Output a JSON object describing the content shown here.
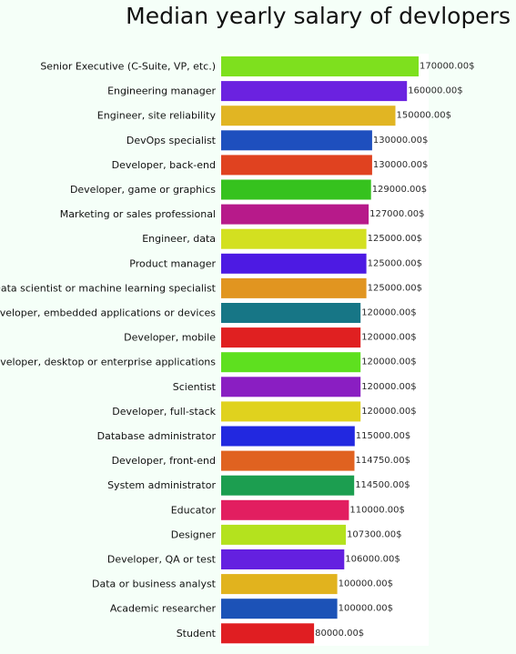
{
  "chart_data": {
    "type": "bar",
    "orientation": "horizontal",
    "title": "Median yearly salary of devlopers",
    "value_suffix": "$",
    "xlim": [
      0,
      170000
    ],
    "grid": false,
    "categories": [
      "Senior Executive (C-Suite, VP, etc.)",
      "Engineering manager",
      "Engineer, site reliability",
      "DevOps specialist",
      "Developer, back-end",
      "Developer, game or graphics",
      "Marketing or sales professional",
      "Engineer, data",
      "Product manager",
      "Data scientist or machine learning specialist",
      "Developer, embedded applications or devices",
      "Developer, mobile",
      "Developer, desktop or enterprise applications",
      "Scientist",
      "Developer, full-stack",
      "Database administrator",
      "Developer, front-end",
      "System administrator",
      "Educator",
      "Designer",
      "Developer, QA or test",
      "Data or business analyst",
      "Academic researcher",
      "Student"
    ],
    "values": [
      170000,
      160000,
      150000,
      130000,
      130000,
      129000,
      127000,
      125000,
      125000,
      125000,
      120000,
      120000,
      120000,
      120000,
      120000,
      115000,
      114750,
      114500,
      110000,
      107300,
      106000,
      100000,
      100000,
      80000
    ],
    "value_labels": [
      "170000.00$",
      "160000.00$",
      "150000.00$",
      "130000.00$",
      "130000.00$",
      "129000.00$",
      "127000.00$",
      "125000.00$",
      "125000.00$",
      "125000.00$",
      "120000.00$",
      "120000.00$",
      "120000.00$",
      "120000.00$",
      "120000.00$",
      "115000.00$",
      "114750.00$",
      "114500.00$",
      "110000.00$",
      "107300.00$",
      "106000.00$",
      "100000.00$",
      "100000.00$",
      "80000.00$"
    ],
    "colors": [
      "#7ee01e",
      "#6b22e0",
      "#e1b523",
      "#1e4fbe",
      "#e04220",
      "#36c21e",
      "#b71a8a",
      "#d3e020",
      "#4d1ae3",
      "#e19520",
      "#177686",
      "#e02021",
      "#5ee01f",
      "#8a1ec2",
      "#e0d21e",
      "#2228e0",
      "#e06220",
      "#1c9e50",
      "#e21e60",
      "#b4e21e",
      "#6420e0",
      "#e1b31e",
      "#1c52b7",
      "#e01e22"
    ]
  }
}
